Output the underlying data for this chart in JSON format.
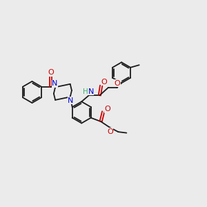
{
  "background_color": "#ebebeb",
  "bond_color": "#1a1a1a",
  "nitrogen_color": "#0000cc",
  "oxygen_color": "#cc0000",
  "hydrogen_color": "#3cb371",
  "figsize": [
    3.0,
    3.0
  ],
  "dpi": 100,
  "xlim": [
    0,
    10
  ],
  "ylim": [
    0,
    10
  ]
}
